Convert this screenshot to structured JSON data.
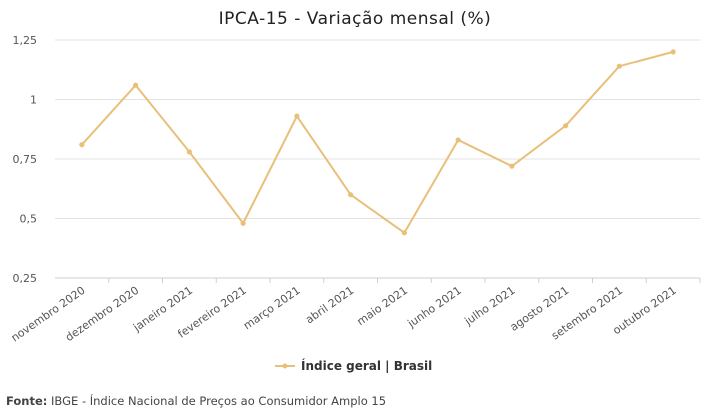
{
  "chart_data": {
    "type": "line",
    "title": "IPCA-15 - Variação mensal (%)",
    "xlabel": "",
    "ylabel": "",
    "ylim": [
      0.25,
      1.25
    ],
    "yticks": [
      "0,25",
      "0,5",
      "0,75",
      "1",
      "1,25"
    ],
    "ytick_values": [
      0.25,
      0.5,
      0.75,
      1,
      1.25
    ],
    "grid": true,
    "legend_position": "bottom",
    "categories": [
      "novembro 2020",
      "dezembro 2020",
      "janeiro 2021",
      "fevereiro 2021",
      "março 2021",
      "abril 2021",
      "maio 2021",
      "junho 2021",
      "julho 2021",
      "agosto 2021",
      "setembro 2021",
      "outubro 2021"
    ],
    "series": [
      {
        "name": "Índice geral | Brasil",
        "color": "#e8c07a",
        "values": [
          0.81,
          1.06,
          0.78,
          0.48,
          0.93,
          0.6,
          0.44,
          0.83,
          0.72,
          0.89,
          1.14,
          1.2
        ]
      }
    ]
  },
  "source": {
    "label": "Fonte:",
    "text": "IBGE - Índice Nacional de Preços ao Consumidor Amplo 15"
  }
}
